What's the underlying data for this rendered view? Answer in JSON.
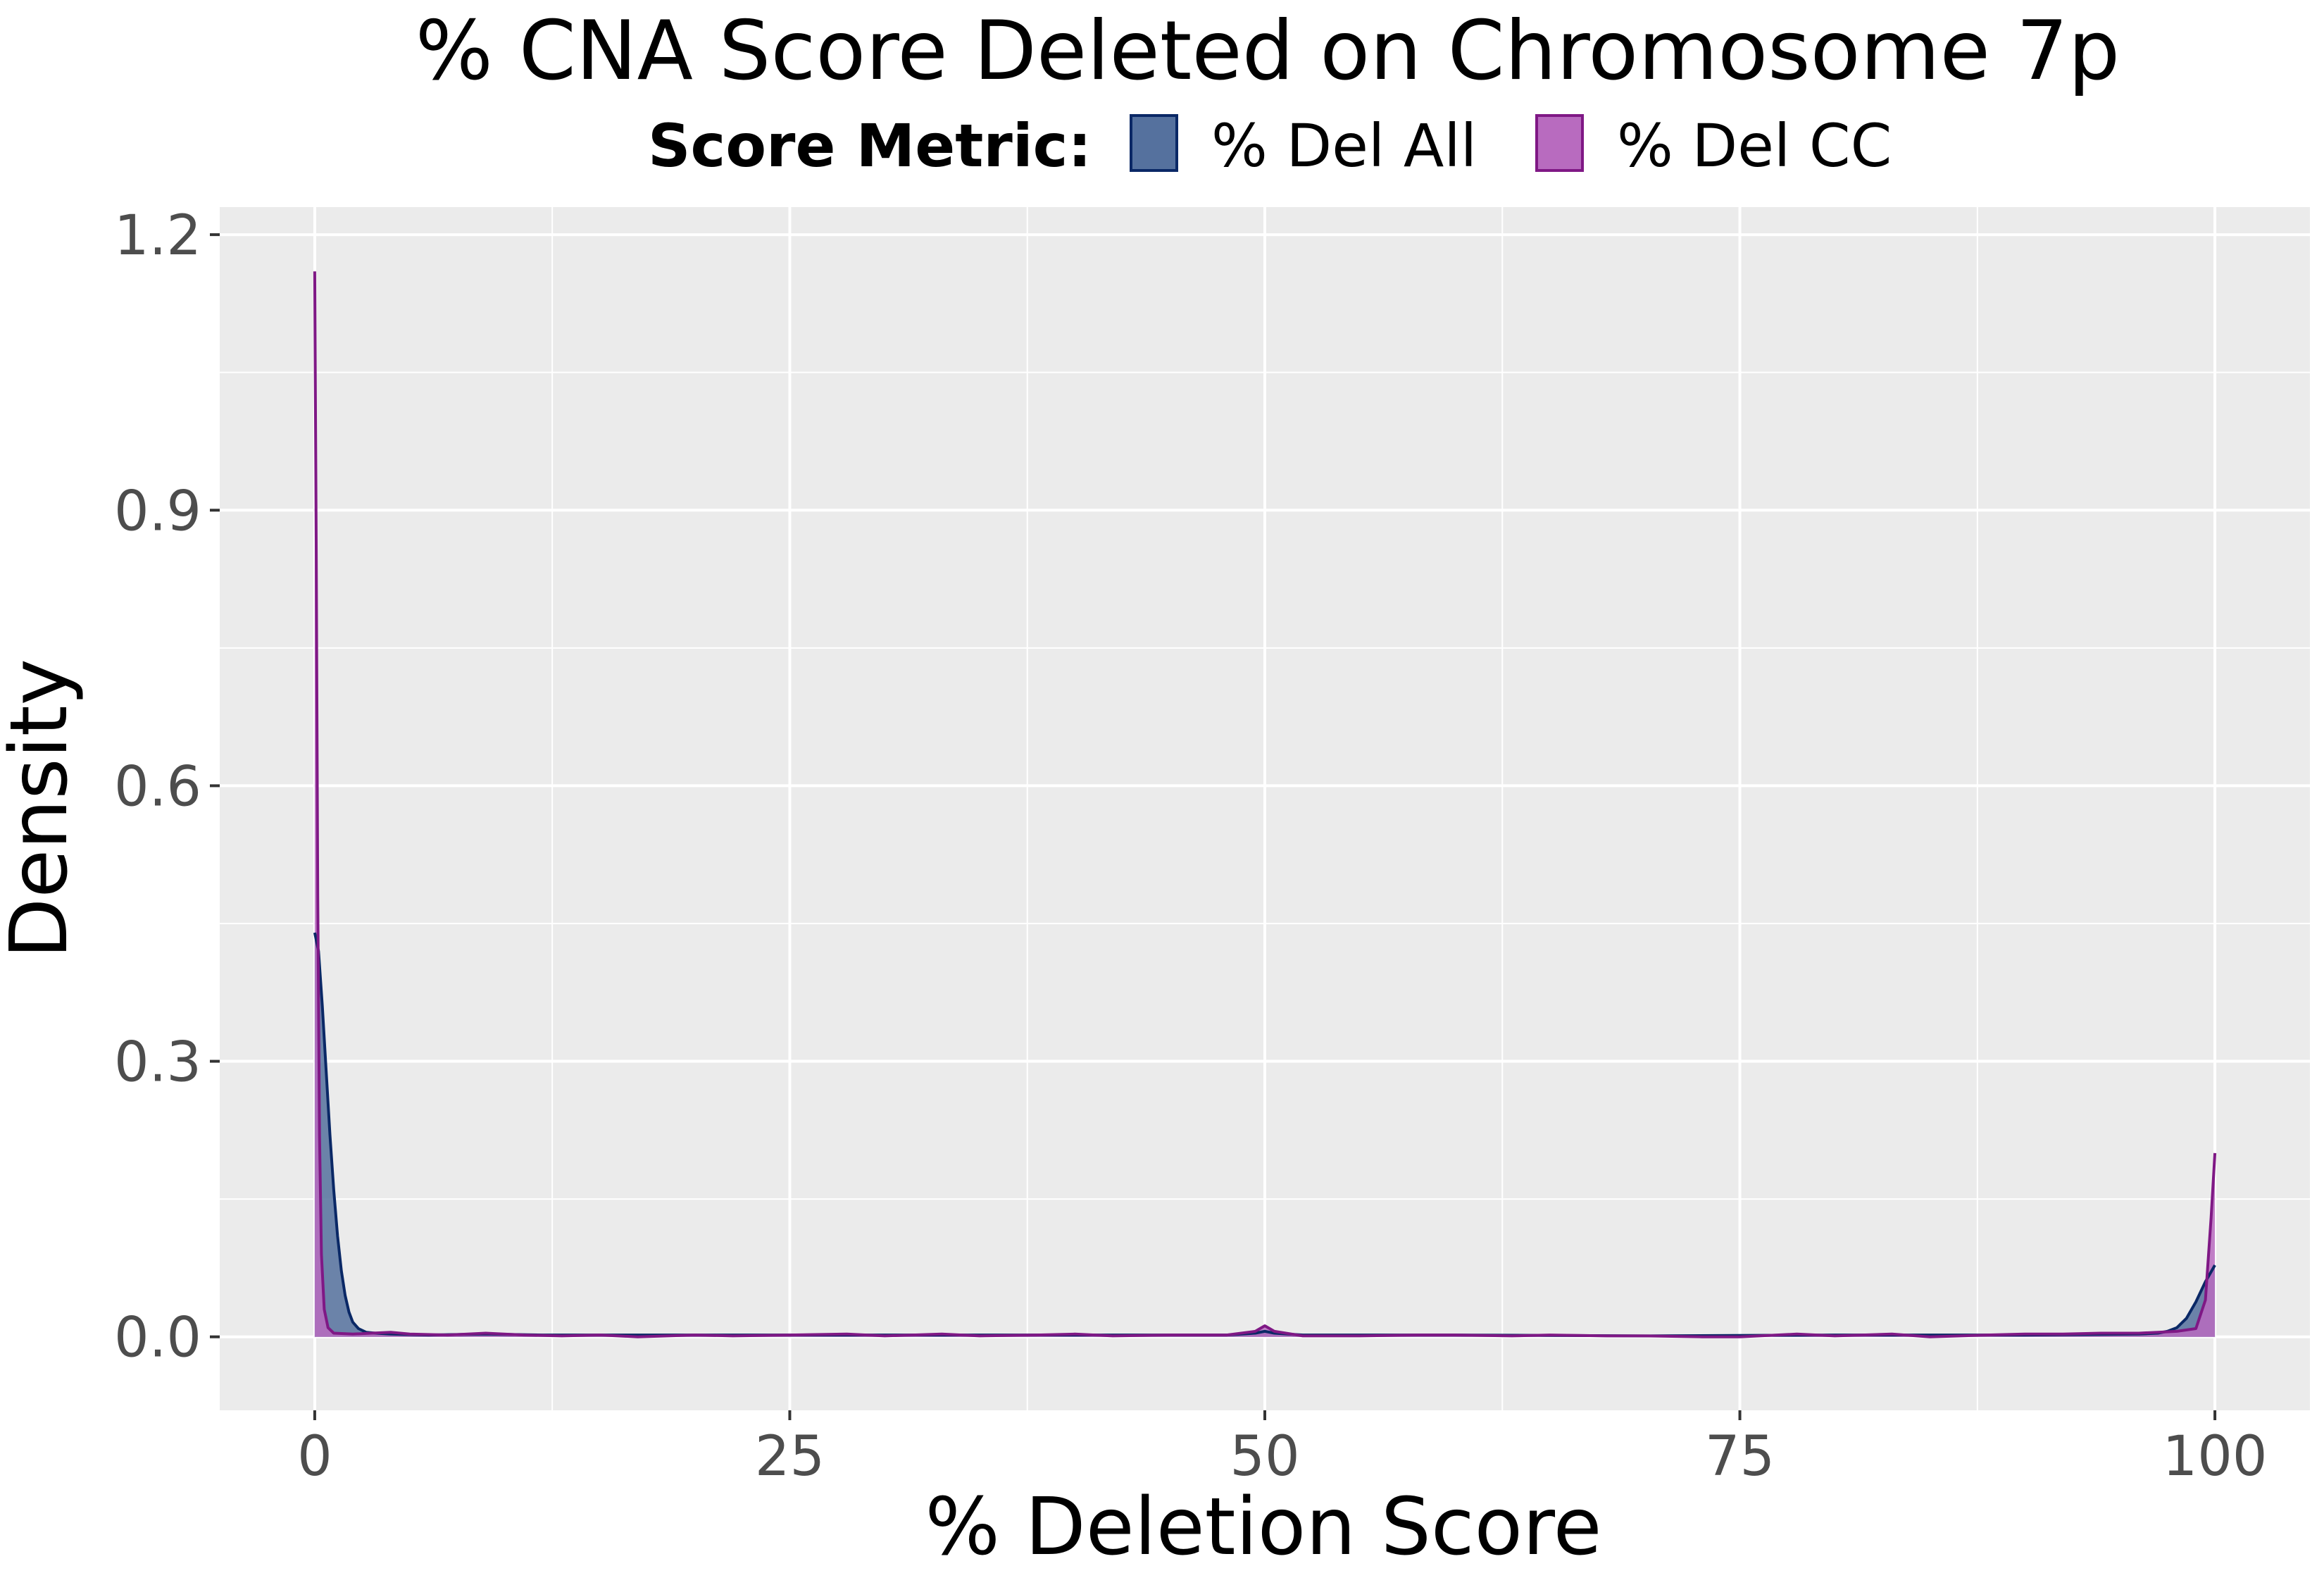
{
  "chart_data": {
    "type": "area",
    "title": "% CNA Score Deleted on Chromosome 7p",
    "xlabel": "% Deletion Score",
    "ylabel": "Density",
    "xlim": [
      -5,
      105
    ],
    "ylim": [
      -0.08,
      1.23
    ],
    "x_ticks": [
      0,
      25,
      50,
      75,
      100
    ],
    "y_ticks": [
      0.0,
      0.3,
      0.6,
      0.9,
      1.2
    ],
    "x_tick_labels": [
      "0",
      "25",
      "50",
      "75",
      "100"
    ],
    "y_tick_labels": [
      "0.0",
      "0.3",
      "0.6",
      "0.9",
      "1.2"
    ],
    "grid": true,
    "panel_background": "#ebebeb",
    "legend": {
      "title": "Score Metric:",
      "position": "top",
      "entries": [
        "% Del All",
        "% Del CC"
      ]
    },
    "series": [
      {
        "name": "% Del All",
        "fill": "#55719e",
        "stroke": "#0a2866",
        "points": [
          [
            0,
            0.44
          ],
          [
            0.2,
            0.42
          ],
          [
            0.4,
            0.36
          ],
          [
            0.6,
            0.29
          ],
          [
            0.8,
            0.22
          ],
          [
            1.0,
            0.16
          ],
          [
            1.2,
            0.11
          ],
          [
            1.4,
            0.072
          ],
          [
            1.6,
            0.045
          ],
          [
            1.8,
            0.027
          ],
          [
            2.0,
            0.016
          ],
          [
            2.3,
            0.009
          ],
          [
            2.7,
            0.005
          ],
          [
            3.2,
            0.004
          ],
          [
            4,
            0.003
          ],
          [
            6,
            0.002
          ],
          [
            9,
            0.003
          ],
          [
            12,
            0.002
          ],
          [
            20,
            0.002
          ],
          [
            30,
            0.002
          ],
          [
            40,
            0.002
          ],
          [
            48,
            0.002
          ],
          [
            49.5,
            0.004
          ],
          [
            50,
            0.006
          ],
          [
            50.5,
            0.004
          ],
          [
            52,
            0.002
          ],
          [
            60,
            0.002
          ],
          [
            70,
            0.001
          ],
          [
            80,
            0.002
          ],
          [
            90,
            0.002
          ],
          [
            96,
            0.003
          ],
          [
            97,
            0.004
          ],
          [
            97.5,
            0.006
          ],
          [
            98,
            0.01
          ],
          [
            98.5,
            0.02
          ],
          [
            99,
            0.038
          ],
          [
            99.5,
            0.06
          ],
          [
            100,
            0.078
          ]
        ]
      },
      {
        "name": "% Del CC",
        "fill": "#b86bbf",
        "stroke": "#7f1885",
        "points": [
          [
            0,
            1.16
          ],
          [
            0.08,
            0.85
          ],
          [
            0.16,
            0.48
          ],
          [
            0.25,
            0.22
          ],
          [
            0.35,
            0.09
          ],
          [
            0.5,
            0.03
          ],
          [
            0.7,
            0.01
          ],
          [
            1.0,
            0.004
          ],
          [
            2,
            0.003
          ],
          [
            3,
            0.004
          ],
          [
            4,
            0.005
          ],
          [
            5,
            0.003
          ],
          [
            7,
            0.002
          ],
          [
            9,
            0.004
          ],
          [
            11,
            0.002
          ],
          [
            13,
            0.001
          ],
          [
            15,
            0.002
          ],
          [
            17,
            0.0
          ],
          [
            20,
            0.002
          ],
          [
            22,
            0.001
          ],
          [
            25,
            0.002
          ],
          [
            28,
            0.003
          ],
          [
            30,
            0.001
          ],
          [
            33,
            0.003
          ],
          [
            35,
            0.001
          ],
          [
            38,
            0.002
          ],
          [
            40,
            0.003
          ],
          [
            42,
            0.001
          ],
          [
            45,
            0.002
          ],
          [
            48,
            0.002
          ],
          [
            49.5,
            0.006
          ],
          [
            50,
            0.012
          ],
          [
            50.5,
            0.006
          ],
          [
            52,
            0.001
          ],
          [
            55,
            0.001
          ],
          [
            58,
            0.002
          ],
          [
            60,
            0.002
          ],
          [
            63,
            0.001
          ],
          [
            65,
            0.002
          ],
          [
            68,
            0.001
          ],
          [
            70,
            0.001
          ],
          [
            73,
            0.0
          ],
          [
            75,
            0.0
          ],
          [
            78,
            0.003
          ],
          [
            80,
            0.001
          ],
          [
            83,
            0.003
          ],
          [
            85,
            0.0
          ],
          [
            88,
            0.002
          ],
          [
            90,
            0.003
          ],
          [
            92,
            0.003
          ],
          [
            94,
            0.004
          ],
          [
            96,
            0.004
          ],
          [
            97,
            0.005
          ],
          [
            98,
            0.006
          ],
          [
            99,
            0.009
          ],
          [
            99.5,
            0.04
          ],
          [
            99.8,
            0.13
          ],
          [
            100,
            0.2
          ]
        ]
      }
    ]
  }
}
